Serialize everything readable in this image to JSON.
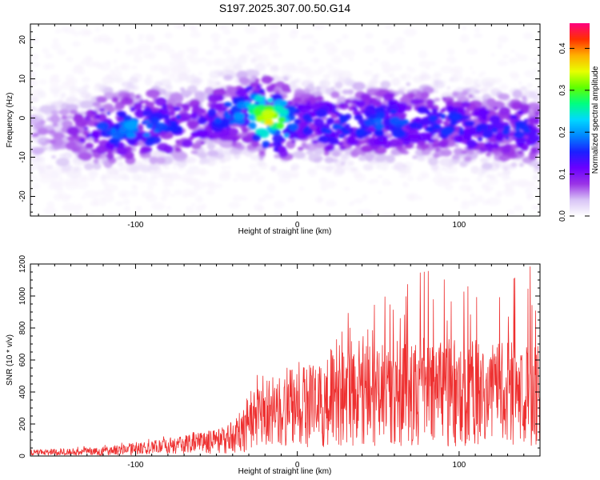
{
  "title": "S197.2025.307.00.50.G14",
  "chart_data": [
    {
      "type": "heatmap",
      "xlabel": "Height of straight line (km)",
      "ylabel": "Frequency (Hz)",
      "xlim": [
        -165,
        150
      ],
      "ylim": [
        -25,
        24
      ],
      "xticks": [
        -100,
        0,
        100
      ],
      "yticks": [
        -20,
        -10,
        0,
        10,
        20
      ],
      "colorbar": {
        "label": "Normalized spectral amplitude",
        "range": [
          0,
          0.46
        ],
        "ticks": [
          0.0,
          0.1,
          0.2,
          0.3,
          0.4
        ],
        "colormap": [
          "#ffffff",
          "#d8c4f6",
          "#9a33e6",
          "#6a00ff",
          "#1a20ff",
          "#0088ff",
          "#00d8ff",
          "#00ff80",
          "#60ff00",
          "#e8ff00",
          "#ffb000",
          "#ff3000",
          "#ff0080"
        ]
      },
      "band": {
        "x": [
          -165,
          -140,
          -120,
          -100,
          -80,
          -60,
          -40,
          -30,
          -20,
          -10,
          0,
          20,
          40,
          60,
          80,
          100,
          120,
          140,
          150
        ],
        "center_hz": [
          -4,
          -4,
          -3,
          -2,
          -2,
          -1,
          1,
          2,
          0,
          -1,
          -1,
          -2,
          -1,
          -1,
          -1,
          -2,
          -3,
          -3,
          -4
        ],
        "peak_amplitude": [
          0.05,
          0.08,
          0.16,
          0.2,
          0.18,
          0.12,
          0.18,
          0.2,
          0.36,
          0.28,
          0.14,
          0.16,
          0.16,
          0.17,
          0.15,
          0.16,
          0.14,
          0.16,
          0.1
        ]
      }
    },
    {
      "type": "line",
      "xlabel": "Height of straight line (km)",
      "ylabel": "SNR (10 * v/v)",
      "xlim": [
        -165,
        150
      ],
      "ylim": [
        0,
        1200
      ],
      "xticks": [
        -100,
        0,
        100
      ],
      "yticks": [
        0,
        200,
        400,
        600,
        800,
        1000,
        1200
      ],
      "series": [
        {
          "name": "SNR",
          "color": "#ee3030",
          "envelope": {
            "x": [
              -165,
              -140,
              -120,
              -100,
              -80,
              -60,
              -45,
              -35,
              -30,
              -20,
              -10,
              0,
              10,
              20,
              30,
              40,
              60,
              80,
              100,
              120,
              140,
              150
            ],
            "mean": [
              22,
              25,
              30,
              45,
              60,
              80,
              100,
              140,
              200,
              250,
              290,
              300,
              310,
              330,
              360,
              380,
              390,
              400,
              400,
              390,
              380,
              370
            ],
            "max": [
              40,
              55,
              70,
              95,
              130,
              170,
              200,
              330,
              500,
              560,
              680,
              640,
              700,
              780,
              900,
              950,
              1150,
              1180,
              1120,
              1000,
              1180,
              1200
            ]
          }
        }
      ]
    }
  ]
}
